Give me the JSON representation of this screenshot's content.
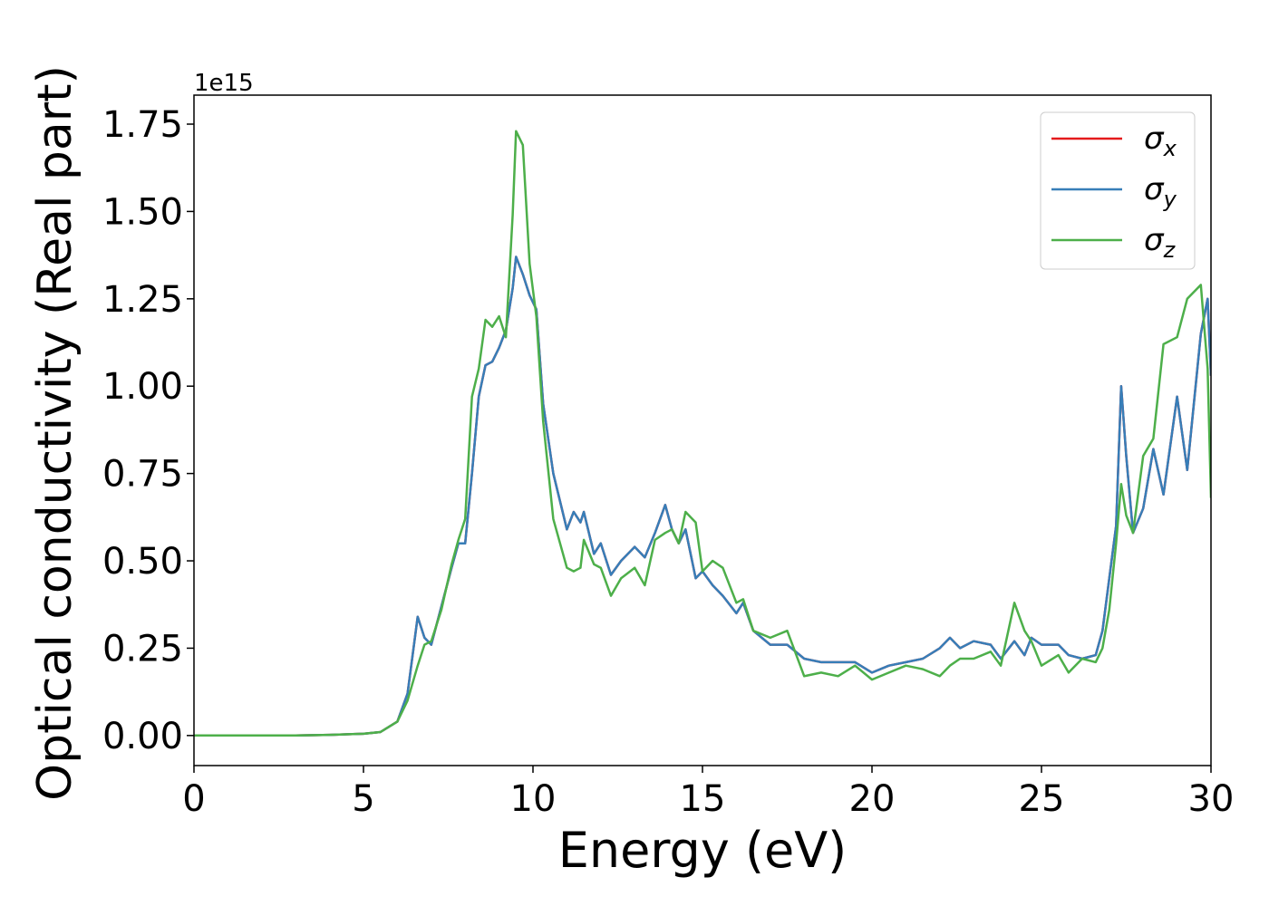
{
  "chart_data": {
    "type": "line",
    "xlabel": "Energy (eV)",
    "ylabel": "Optical conductivity (Real part)",
    "y_offset_label": "1e15",
    "x": [
      0,
      1,
      2,
      3,
      4,
      5,
      5.5,
      6,
      6.3,
      6.6,
      6.8,
      7.0,
      7.3,
      7.6,
      7.8,
      8.0,
      8.2,
      8.4,
      8.6,
      8.8,
      9.0,
      9.2,
      9.4,
      9.5,
      9.7,
      9.9,
      10.1,
      10.3,
      10.6,
      11.0,
      11.2,
      11.4,
      11.5,
      11.8,
      12.0,
      12.3,
      12.6,
      13.0,
      13.3,
      13.6,
      13.9,
      14.1,
      14.3,
      14.5,
      14.8,
      15.0,
      15.3,
      15.6,
      16.0,
      16.2,
      16.5,
      17.0,
      17.5,
      18.0,
      18.5,
      19.0,
      19.5,
      20,
      20.5,
      21,
      21.5,
      22,
      22.3,
      22.6,
      23,
      23.5,
      23.8,
      24.2,
      24.5,
      24.7,
      25,
      25.5,
      25.8,
      26.2,
      26.6,
      26.8,
      27.0,
      27.2,
      27.35,
      27.5,
      27.7,
      28.0,
      28.3,
      28.6,
      29.0,
      29.3,
      29.7,
      29.9,
      30
    ],
    "series": [
      {
        "name": "σx",
        "color": "#e41a1c",
        "values": [
          0,
          0,
          0,
          0,
          0.002,
          0.005,
          0.01,
          0.04,
          0.12,
          0.34,
          0.28,
          0.26,
          0.37,
          0.48,
          0.55,
          0.55,
          0.75,
          0.97,
          1.06,
          1.07,
          1.11,
          1.16,
          1.28,
          1.37,
          1.32,
          1.26,
          1.22,
          0.95,
          0.75,
          0.59,
          0.64,
          0.61,
          0.64,
          0.52,
          0.55,
          0.46,
          0.5,
          0.54,
          0.51,
          0.58,
          0.66,
          0.59,
          0.55,
          0.59,
          0.45,
          0.47,
          0.43,
          0.4,
          0.35,
          0.38,
          0.3,
          0.26,
          0.26,
          0.22,
          0.21,
          0.21,
          0.21,
          0.18,
          0.2,
          0.21,
          0.22,
          0.25,
          0.28,
          0.25,
          0.27,
          0.26,
          0.22,
          0.27,
          0.23,
          0.28,
          0.26,
          0.26,
          0.23,
          0.22,
          0.23,
          0.3,
          0.45,
          0.6,
          1.0,
          0.8,
          0.58,
          0.65,
          0.82,
          0.69,
          0.97,
          0.76,
          1.15,
          1.25,
          1.03
        ]
      },
      {
        "name": "σy",
        "color": "#377eb8",
        "values": [
          0,
          0,
          0,
          0,
          0.002,
          0.005,
          0.01,
          0.04,
          0.12,
          0.34,
          0.28,
          0.26,
          0.37,
          0.48,
          0.55,
          0.55,
          0.75,
          0.97,
          1.06,
          1.07,
          1.11,
          1.16,
          1.28,
          1.37,
          1.32,
          1.26,
          1.22,
          0.95,
          0.75,
          0.59,
          0.64,
          0.61,
          0.64,
          0.52,
          0.55,
          0.46,
          0.5,
          0.54,
          0.51,
          0.58,
          0.66,
          0.59,
          0.55,
          0.59,
          0.45,
          0.47,
          0.43,
          0.4,
          0.35,
          0.38,
          0.3,
          0.26,
          0.26,
          0.22,
          0.21,
          0.21,
          0.21,
          0.18,
          0.2,
          0.21,
          0.22,
          0.25,
          0.28,
          0.25,
          0.27,
          0.26,
          0.22,
          0.27,
          0.23,
          0.28,
          0.26,
          0.26,
          0.23,
          0.22,
          0.23,
          0.3,
          0.45,
          0.6,
          1.0,
          0.8,
          0.58,
          0.65,
          0.82,
          0.69,
          0.97,
          0.76,
          1.15,
          1.25,
          1.03
        ]
      },
      {
        "name": "σz",
        "color": "#4daf4a",
        "values": [
          0,
          0,
          0,
          0,
          0.002,
          0.005,
          0.01,
          0.04,
          0.1,
          0.2,
          0.26,
          0.27,
          0.36,
          0.49,
          0.56,
          0.62,
          0.97,
          1.05,
          1.19,
          1.17,
          1.2,
          1.14,
          1.49,
          1.73,
          1.69,
          1.35,
          1.2,
          0.9,
          0.62,
          0.48,
          0.47,
          0.48,
          0.56,
          0.49,
          0.48,
          0.4,
          0.45,
          0.48,
          0.43,
          0.56,
          0.58,
          0.59,
          0.55,
          0.64,
          0.61,
          0.47,
          0.5,
          0.48,
          0.38,
          0.39,
          0.3,
          0.28,
          0.3,
          0.17,
          0.18,
          0.17,
          0.2,
          0.16,
          0.18,
          0.2,
          0.19,
          0.17,
          0.2,
          0.22,
          0.22,
          0.24,
          0.2,
          0.38,
          0.3,
          0.27,
          0.2,
          0.23,
          0.18,
          0.22,
          0.21,
          0.25,
          0.36,
          0.55,
          0.72,
          0.63,
          0.58,
          0.8,
          0.85,
          1.12,
          1.14,
          1.25,
          1.29,
          1.05,
          0.68
        ]
      }
    ],
    "xlim": [
      0,
      30
    ],
    "xticks": [
      0,
      5,
      10,
      15,
      20,
      25,
      30
    ],
    "ylim": [
      -0.086,
      1.833
    ],
    "yticks": [
      {
        "value": 0,
        "label": "0.00"
      },
      0.25,
      {
        "value": 0.5,
        "label": "0.50"
      },
      0.75,
      {
        "value": 1,
        "label": "1.00"
      },
      1.25,
      {
        "value": 1.5,
        "label": "1.50"
      },
      1.75
    ],
    "grid": false,
    "legend": "upper right"
  }
}
